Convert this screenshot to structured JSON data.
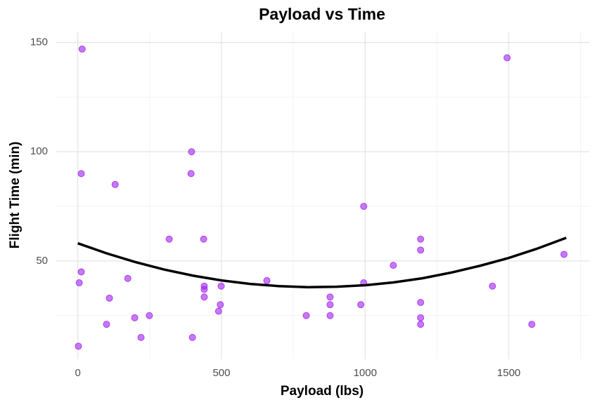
{
  "chart_data": {
    "type": "scatter",
    "title": "Payload vs Time",
    "x_label": "Payload (lbs)",
    "y_label": "Flight Time (min)",
    "xlim": [
      -75,
      1780
    ],
    "ylim": [
      5,
      155
    ],
    "xticks": [
      0,
      500,
      1000,
      1500
    ],
    "yticks": [
      50,
      100,
      150
    ],
    "x_minor_ticks": [
      250,
      750,
      1250,
      1750
    ],
    "y_minor_ticks": [
      25,
      75,
      125
    ],
    "grid": true,
    "points": {
      "color": "#a020f0",
      "alpha": 0.6,
      "x": [
        15,
        12,
        12,
        5,
        2,
        100,
        110,
        130,
        174,
        198,
        220,
        249,
        318,
        396,
        394,
        399,
        438,
        440,
        440,
        440,
        496,
        490,
        499,
        658,
        795,
        878,
        878,
        878,
        985,
        995,
        995,
        1098,
        1193,
        1193,
        1193,
        1193,
        1193,
        1443,
        1494,
        1580,
        1692
      ],
      "y": [
        147,
        90,
        45,
        40,
        11,
        21,
        33,
        85,
        42,
        24,
        15,
        25,
        60,
        100,
        90,
        15,
        60,
        38.5,
        37,
        33.5,
        30,
        27,
        38.5,
        41,
        25,
        33.5,
        30,
        25,
        30,
        75,
        40,
        48,
        60,
        55,
        31,
        24,
        21,
        38.5,
        143,
        21,
        53
      ]
    },
    "trend": {
      "color": "#000000",
      "x": [
        0,
        100,
        200,
        300,
        400,
        500,
        600,
        700,
        800,
        900,
        1000,
        1100,
        1200,
        1300,
        1400,
        1500,
        1600,
        1700
      ],
      "y": [
        58.1,
        53.5,
        49.5,
        46.1,
        43.3,
        41.1,
        39.5,
        38.5,
        38.0,
        38.2,
        38.9,
        40.2,
        42.1,
        44.7,
        47.8,
        51.4,
        55.7,
        60.6
      ]
    }
  }
}
